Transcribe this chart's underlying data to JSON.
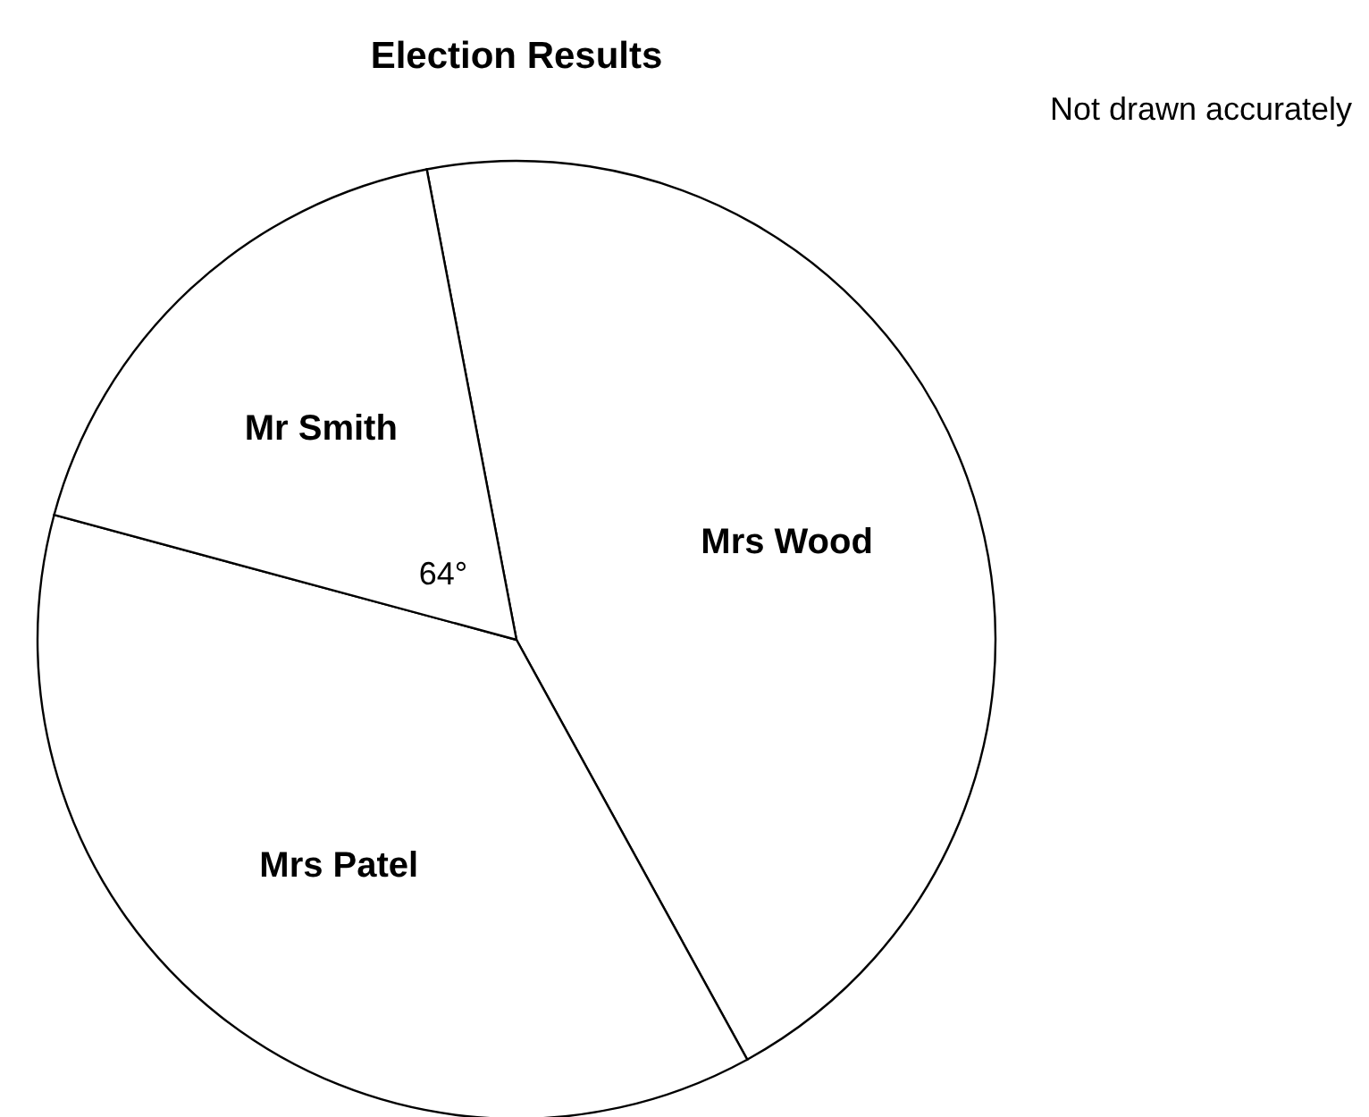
{
  "chart_data": {
    "type": "pie",
    "title": "Election Results",
    "categories": [
      "Mrs Wood",
      "Mrs Patel",
      "Mr Smith"
    ],
    "values": [
      45.0,
      37.2,
      17.8
    ],
    "colors": [
      "#ffffff",
      "#ffffff",
      "#ffffff"
    ],
    "annotations": [
      "64°",
      "Not drawn accurately"
    ]
  }
}
